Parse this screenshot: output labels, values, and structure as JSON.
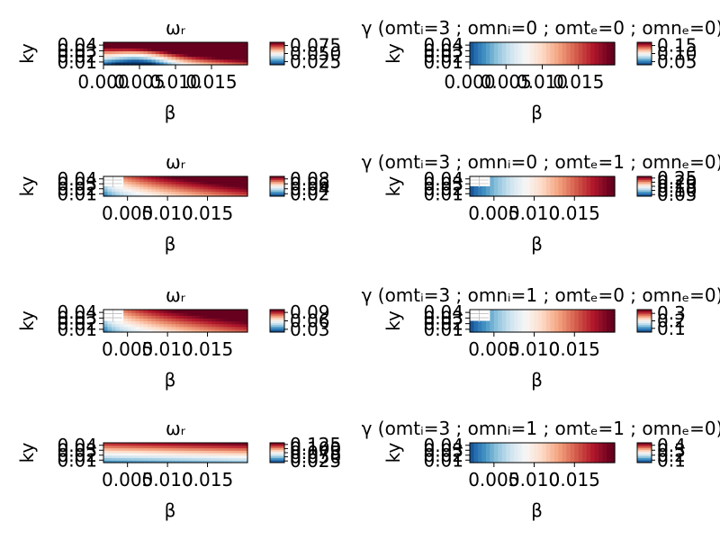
{
  "colors": {
    "cmap": [
      "#053061",
      "#2166ac",
      "#4393c3",
      "#92c5de",
      "#d1e5f0",
      "#f7f7f7",
      "#fddbc7",
      "#f4a582",
      "#d6604d",
      "#b2182b",
      "#67001f"
    ],
    "axis": "#000000",
    "background": "#ffffff"
  },
  "chart_data": [
    {
      "type": "heatmap",
      "row": 0,
      "col": 0,
      "title": "ωᵣ",
      "xlabel": "β",
      "ylabel": "ky",
      "xlim": [
        0.0,
        0.02
      ],
      "ylim": [
        0.005,
        0.045
      ],
      "xticks": [
        0.0,
        0.005,
        0.01,
        0.015
      ],
      "xtick_labels": [
        "0.000",
        "0.005",
        "0.010",
        "0.015"
      ],
      "yticks": [
        0.01,
        0.02,
        0.03,
        0.04
      ],
      "ytick_labels": [
        "0.01",
        "0.02",
        "0.03",
        "0.04"
      ],
      "colorbar": {
        "ticks": [
          0.025,
          0.05,
          0.075
        ],
        "tick_labels": [
          "0.025",
          "0.050",
          "0.075"
        ],
        "range": [
          0.015,
          0.085
        ]
      },
      "pattern": "omega-a",
      "missing_corner": false
    },
    {
      "type": "heatmap",
      "row": 0,
      "col": 1,
      "title": "γ (omtᵢ=3 ; omnᵢ=0 ; omtₑ=0 ; omnₑ=0)",
      "xlabel": "β",
      "ylabel": "ky",
      "xlim": [
        0.0,
        0.02
      ],
      "ylim": [
        0.005,
        0.045
      ],
      "xticks": [
        0.0,
        0.005,
        0.01,
        0.015
      ],
      "xtick_labels": [
        "0.000",
        "0.005",
        "0.010",
        "0.015"
      ],
      "yticks": [
        0.01,
        0.02,
        0.03,
        0.04
      ],
      "ytick_labels": [
        "0.01",
        "0.02",
        "0.03",
        "0.04"
      ],
      "colorbar": {
        "ticks": [
          0.05,
          0.1,
          0.15
        ],
        "tick_labels": [
          "0.05",
          "0.10",
          "0.15"
        ],
        "range": [
          0.03,
          0.17
        ]
      },
      "pattern": "gamma",
      "missing_corner": false
    },
    {
      "type": "heatmap",
      "row": 1,
      "col": 0,
      "title": "ωᵣ",
      "xlabel": "β",
      "ylabel": "ky",
      "xlim": [
        0.002,
        0.02
      ],
      "ylim": [
        0.005,
        0.045
      ],
      "xticks": [
        0.005,
        0.01,
        0.015
      ],
      "xtick_labels": [
        "0.005",
        "0.010",
        "0.015"
      ],
      "yticks": [
        0.01,
        0.02,
        0.03,
        0.04
      ],
      "ytick_labels": [
        "0.01",
        "0.02",
        "0.03",
        "0.04"
      ],
      "colorbar": {
        "ticks": [
          0.02,
          0.04,
          0.06,
          0.08
        ],
        "tick_labels": [
          "0.02",
          "0.04",
          "0.06",
          "0.08"
        ],
        "range": [
          0.01,
          0.09
        ]
      },
      "pattern": "omega-b",
      "missing_corner": true
    },
    {
      "type": "heatmap",
      "row": 1,
      "col": 1,
      "title": "γ (omtᵢ=3 ; omnᵢ=0 ; omtₑ=1 ; omnₑ=0)",
      "xlabel": "β",
      "ylabel": "ky",
      "xlim": [
        0.002,
        0.02
      ],
      "ylim": [
        0.005,
        0.045
      ],
      "xticks": [
        0.005,
        0.01,
        0.015
      ],
      "xtick_labels": [
        "0.005",
        "0.010",
        "0.015"
      ],
      "yticks": [
        0.01,
        0.02,
        0.03,
        0.04
      ],
      "ytick_labels": [
        "0.01",
        "0.02",
        "0.03",
        "0.04"
      ],
      "colorbar": {
        "ticks": [
          0.05,
          0.1,
          0.15,
          0.2,
          0.25
        ],
        "tick_labels": [
          "0.05",
          "0.10",
          "0.15",
          "0.20",
          "0.25"
        ],
        "range": [
          0.03,
          0.27
        ]
      },
      "pattern": "gamma",
      "missing_corner": true
    },
    {
      "type": "heatmap",
      "row": 2,
      "col": 0,
      "title": "ωᵣ",
      "xlabel": "β",
      "ylabel": "ky",
      "xlim": [
        0.002,
        0.02
      ],
      "ylim": [
        0.005,
        0.045
      ],
      "xticks": [
        0.005,
        0.01,
        0.015
      ],
      "xtick_labels": [
        "0.005",
        "0.010",
        "0.015"
      ],
      "yticks": [
        0.01,
        0.02,
        0.03,
        0.04
      ],
      "ytick_labels": [
        "0.01",
        "0.02",
        "0.03",
        "0.04"
      ],
      "colorbar": {
        "ticks": [
          0.03,
          0.06,
          0.09
        ],
        "tick_labels": [
          "0.03",
          "0.06",
          "0.09"
        ],
        "range": [
          0.02,
          0.1
        ]
      },
      "pattern": "omega-b",
      "missing_corner": true
    },
    {
      "type": "heatmap",
      "row": 2,
      "col": 1,
      "title": "γ (omtᵢ=3 ; omnᵢ=1 ; omtₑ=0 ; omnₑ=0)",
      "xlabel": "β",
      "ylabel": "ky",
      "xlim": [
        0.002,
        0.02
      ],
      "ylim": [
        0.005,
        0.045
      ],
      "xticks": [
        0.005,
        0.01,
        0.015
      ],
      "xtick_labels": [
        "0.005",
        "0.010",
        "0.015"
      ],
      "yticks": [
        0.01,
        0.02,
        0.03,
        0.04
      ],
      "ytick_labels": [
        "0.01",
        "0.02",
        "0.03",
        "0.04"
      ],
      "colorbar": {
        "ticks": [
          0.1,
          0.2,
          0.3
        ],
        "tick_labels": [
          "0.1",
          "0.2",
          "0.3"
        ],
        "range": [
          0.05,
          0.35
        ]
      },
      "pattern": "gamma",
      "missing_corner": true
    },
    {
      "type": "heatmap",
      "row": 3,
      "col": 0,
      "title": "ωᵣ",
      "xlabel": "β",
      "ylabel": "ky",
      "xlim": [
        0.002,
        0.02
      ],
      "ylim": [
        0.005,
        0.045
      ],
      "xticks": [
        0.005,
        0.01,
        0.015
      ],
      "xtick_labels": [
        "0.005",
        "0.010",
        "0.015"
      ],
      "yticks": [
        0.01,
        0.02,
        0.03,
        0.04
      ],
      "ytick_labels": [
        "0.01",
        "0.02",
        "0.03",
        "0.04"
      ],
      "colorbar": {
        "ticks": [
          0.025,
          0.05,
          0.075,
          0.1,
          0.125
        ],
        "tick_labels": [
          "0.025",
          "0.050",
          "0.075",
          "0.100",
          "0.125"
        ],
        "range": [
          0.015,
          0.135
        ]
      },
      "pattern": "omega-c",
      "missing_corner": false
    },
    {
      "type": "heatmap",
      "row": 3,
      "col": 1,
      "title": "γ (omtᵢ=3 ; omnᵢ=1 ; omtₑ=1 ; omnₑ=0)",
      "xlabel": "β",
      "ylabel": "ky",
      "xlim": [
        0.002,
        0.02
      ],
      "ylim": [
        0.005,
        0.045
      ],
      "xticks": [
        0.005,
        0.01,
        0.015
      ],
      "xtick_labels": [
        "0.005",
        "0.010",
        "0.015"
      ],
      "yticks": [
        0.01,
        0.02,
        0.03,
        0.04
      ],
      "ytick_labels": [
        "0.01",
        "0.02",
        "0.03",
        "0.04"
      ],
      "colorbar": {
        "ticks": [
          0.1,
          0.2,
          0.3,
          0.4
        ],
        "tick_labels": [
          "0.1",
          "0.2",
          "0.3",
          "0.4"
        ],
        "range": [
          0.05,
          0.45
        ]
      },
      "pattern": "gamma",
      "missing_corner": false
    }
  ]
}
